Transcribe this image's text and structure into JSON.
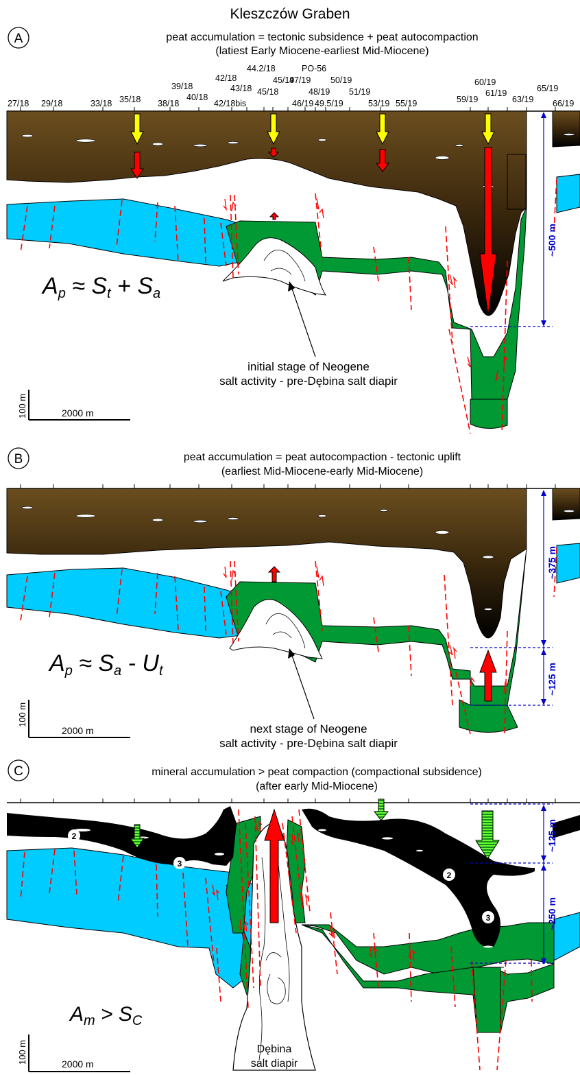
{
  "title": "Kleszczów Graben",
  "panels": {
    "a": {
      "label": "A",
      "caption1": "peat accumulation = tectonic subsidence + peat autocompaction",
      "caption2": "(latiest Early Miocene-earliest Mid-Miocene)",
      "eq_main": "A",
      "eq_sub": "p",
      "eq_rest": " ≈ S",
      "eq_sub2": "t",
      "eq_rest2": " + S",
      "eq_sub3": "a",
      "thickness": "~500 m",
      "annotation1": "initial stage of Neogene",
      "annotation2": "salt activity - pre-Dębina salt diapir"
    },
    "b": {
      "label": "B",
      "caption1": "peat accumulation = peat autocompaction - tectonic uplift",
      "caption2": "(earliest Mid-Miocene-early Mid-Miocene)",
      "eq_main": "A",
      "eq_sub": "p",
      "eq_rest": " ≈ S",
      "eq_sub2": "a",
      "eq_rest2": " - U",
      "eq_sub3": "t",
      "thickness_upper": "~375 m",
      "thickness_lower": "~125 m",
      "annotation1": "next stage of Neogene",
      "annotation2": "salt activity - pre-Dębina salt diapir"
    },
    "c": {
      "label": "C",
      "caption1": "mineral accumulation > peat compaction (compactional subsidence)",
      "caption2": "(after early Mid-Miocene)",
      "eq_main": "A",
      "eq_sub": "m",
      "eq_rest": " > S",
      "eq_sub2": "C",
      "thickness_upper": "~125 m",
      "thickness_lower": "~250 m",
      "seam2": "2",
      "seam3": "3",
      "diapir1": "Dębina",
      "diapir2": "salt diapir"
    }
  },
  "scale": {
    "vertical": "100 m",
    "horizontal": "2000 m"
  },
  "boreholes": {
    "row_bottom": [
      "27/18",
      "29/18",
      "33/18",
      "35/18",
      "38/18",
      "40/18",
      "42/18bis",
      "46/19",
      "49.5/19",
      "53/19",
      "55/19",
      "59/19",
      "61/19",
      "63/19",
      "66/19"
    ],
    "row2": [
      "39/18",
      "43/18",
      "45/18",
      "48/19",
      "51/19",
      "65/19"
    ],
    "row3": [
      "42/18",
      "45/19",
      "47/19",
      "50/19",
      "60/19"
    ],
    "row4": [
      "44.2/18",
      "PO-56"
    ]
  },
  "colors": {
    "peat_top": "#6b4e1f",
    "peat_bottom": "#000000",
    "blue": "#00ccff",
    "green": "#009933",
    "fault": "#ff0000",
    "dim": "#0000cc",
    "arrow_yellow": "#ffff00",
    "arrow_red": "#ff0000",
    "arrow_green": "#66ff33"
  }
}
